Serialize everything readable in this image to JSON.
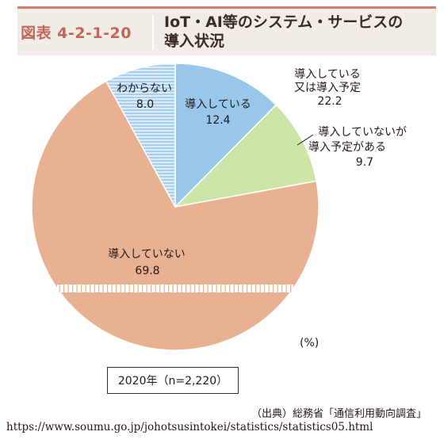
{
  "header": {
    "figure_number": "図表 4-2-1-20",
    "title_line1": "IoT・AI等のシステム・サービスの",
    "title_line2": "導入状況"
  },
  "chart_data": {
    "type": "pie",
    "unit": "(%)",
    "group_label": "導入している又は導入予定",
    "group_value": "22.2",
    "slices": [
      {
        "label": "導入している",
        "value": 12.4,
        "color": "#98c7ea"
      },
      {
        "label": "導入していないが導入予定がある",
        "label_lines": [
          "導入していないが",
          "導入予定がある"
        ],
        "value": 9.7,
        "color": "#cde5a7"
      },
      {
        "label": "導入していない",
        "value": 69.8,
        "color": "#e8b292"
      },
      {
        "label": "わからない",
        "value": 8.0,
        "color": "#a9cfee"
      }
    ]
  },
  "footer": {
    "year_label": "2020年（n=2,220）",
    "source": "（出典）総務省「通信利用動向調査」",
    "url": "https://www.soumu.go.jp/johotsusintokei/statistics/statistics05.html"
  }
}
